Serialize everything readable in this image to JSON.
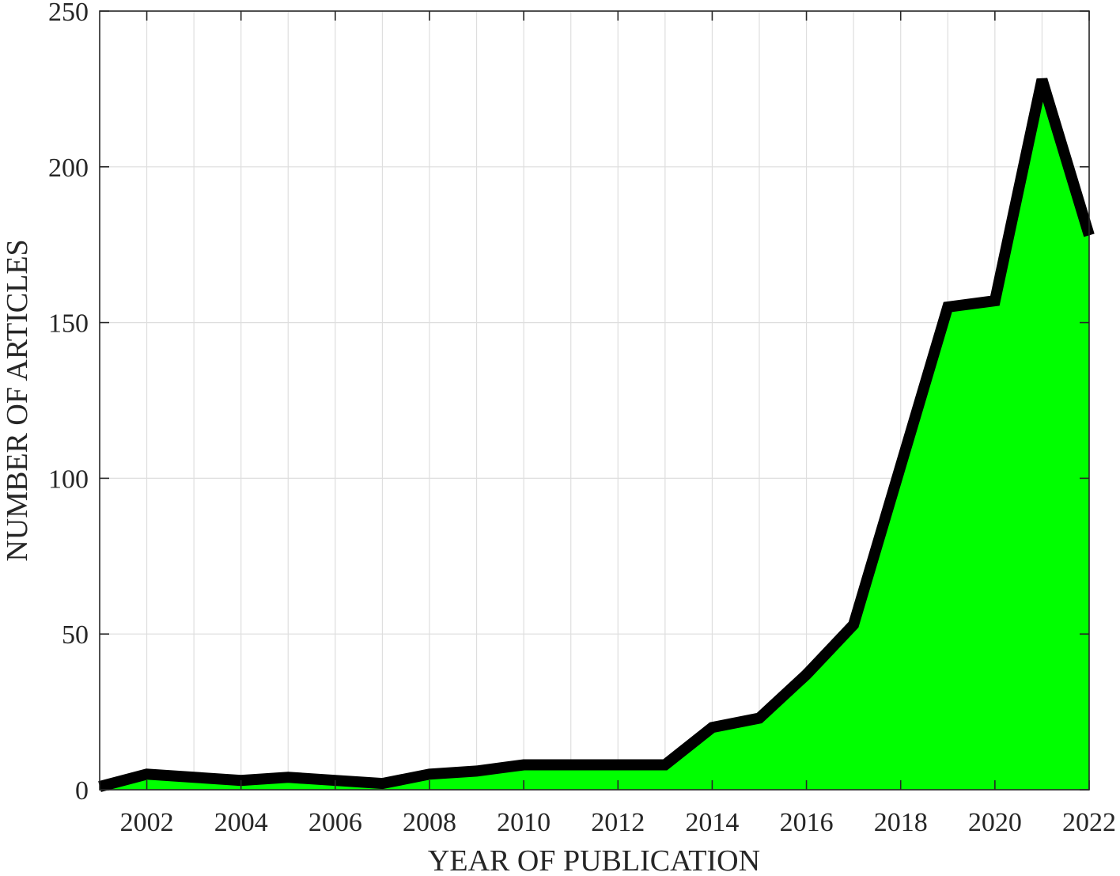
{
  "chart_data": {
    "type": "area",
    "title": "",
    "xlabel": "YEAR OF PUBLICATION",
    "ylabel": "NUMBER OF ARTICLES",
    "xlim": [
      2001,
      2022
    ],
    "ylim": [
      0,
      250
    ],
    "xticks": [
      2002,
      2004,
      2006,
      2008,
      2010,
      2012,
      2014,
      2016,
      2018,
      2020,
      2022
    ],
    "yticks": [
      0,
      50,
      100,
      150,
      200,
      250
    ],
    "grid": true,
    "legend": "none",
    "series": [
      {
        "x": [
          2001,
          2002,
          2003,
          2004,
          2005,
          2006,
          2007,
          2008,
          2009,
          2010,
          2011,
          2012,
          2013,
          2014,
          2015,
          2016,
          2017,
          2018,
          2019,
          2020,
          2021,
          2022
        ],
        "values": [
          1,
          5,
          4,
          3,
          4,
          3,
          2,
          5,
          6,
          8,
          8,
          8,
          8,
          20,
          23,
          37,
          53,
          104,
          155,
          157,
          228,
          178
        ],
        "fill_color": "#00ff00",
        "line_color": "#000000"
      }
    ]
  }
}
